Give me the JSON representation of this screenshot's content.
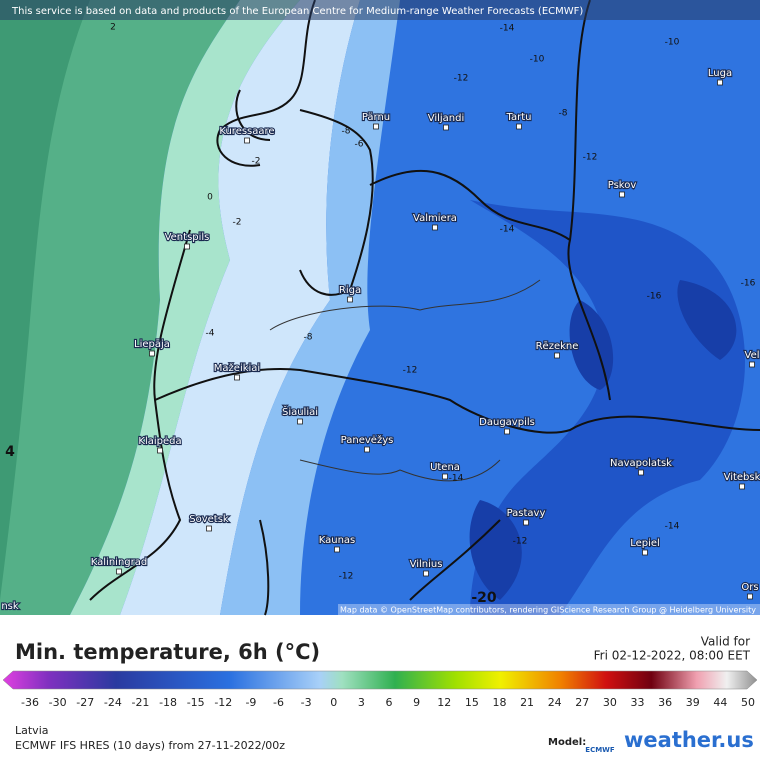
{
  "header": {
    "notice": "This service is based on data and products of the European Centre for Medium-range Weather Forecasts (ECMWF)"
  },
  "map": {
    "cities": [
      "Luga",
      "Pärnu",
      "Viljandi",
      "Tartu",
      "Kuressaare",
      "Pskov",
      "Valmiera",
      "Ventspils",
      "Riga",
      "Rēzekne",
      "Vel",
      "Liepāja",
      "Mažeikiai",
      "Šiauliai",
      "Daugavpils",
      "Klaipėda",
      "Panevėžys",
      "Navapolatsk",
      "Utena",
      "Vitebsk",
      "Pastavy",
      "Sovetsk",
      "Kaunas",
      "Lepiel",
      "Kaliningrad",
      "Vilnius",
      "Ors",
      "nsk"
    ],
    "contour_labels": [
      -14,
      -10,
      -10,
      -12,
      2,
      -8,
      -6,
      -2,
      -8,
      -12,
      0,
      -2,
      -14,
      -16,
      -16,
      -4,
      -8,
      -12,
      -14,
      -14,
      -12,
      -12,
      -20,
      4
    ],
    "attribution": "Map data © OpenStreetMap contributors, rendering GIScience Research Group @ Heidelberg University"
  },
  "footer": {
    "title": "Min. temperature, 6h (°C)",
    "valid_label": "Valid for",
    "valid_time": "Fri 02-12-2022, 08:00 EET",
    "colorbar_ticks": [
      -36,
      -30,
      -27,
      -24,
      -21,
      -18,
      -15,
      -12,
      -9,
      -6,
      -3,
      0,
      3,
      6,
      9,
      12,
      15,
      18,
      21,
      24,
      27,
      30,
      33,
      36,
      39,
      44,
      50
    ],
    "region": "Latvia",
    "model_run": "ECMWF IFS HRES (10 days) from 27-11-2022/00z",
    "model_label": "Model:",
    "model_name": "ECMWF",
    "brand": "weather.us"
  }
}
